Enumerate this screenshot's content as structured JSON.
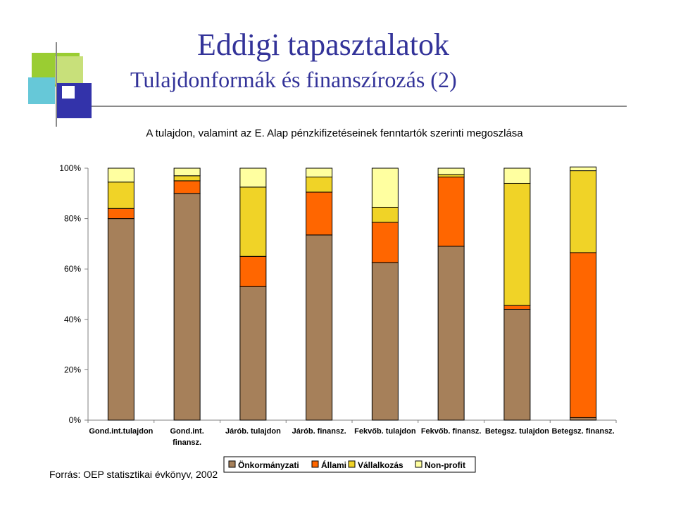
{
  "slide": {
    "title": "Eddigi tapasztalatok",
    "subtitle": "Tulajdonformák és finanszírozás (2)",
    "source": "Forrás: OEP statisztikai évkönyv, 2002"
  },
  "chart_data": {
    "type": "bar",
    "stacked": true,
    "percent_stacked": true,
    "title": "A tulajdon, valamint az E. Alap pénzkifizetéseinek fenntartók szerinti megoszlása",
    "categories": [
      [
        "Gond.int.tulajdon"
      ],
      [
        "Gond.int.",
        "finansz."
      ],
      [
        "Járób. tulajdon"
      ],
      [
        "Járób. finansz."
      ],
      [
        "Fekvőb. tulajdon"
      ],
      [
        "Fekvőb. finansz."
      ],
      [
        "Betegsz. tulajdon"
      ],
      [
        "Betegsz. finansz."
      ]
    ],
    "yticks": [
      "0%",
      "20%",
      "40%",
      "60%",
      "80%",
      "100%"
    ],
    "ylim": [
      0,
      100
    ],
    "grid": false,
    "legend_position": "bottom",
    "series": [
      {
        "name": "Önkormányzati",
        "color": "#A6805A",
        "values": [
          80,
          90,
          53,
          73.5,
          62.5,
          69,
          44,
          1
        ]
      },
      {
        "name": "Állami",
        "color": "#FF6600",
        "values": [
          4,
          5,
          12,
          17,
          16,
          27.5,
          1.5,
          65.5
        ]
      },
      {
        "name": "Vállalkozás",
        "color": "#F0D327",
        "values": [
          10.5,
          2,
          27.5,
          6,
          6,
          1,
          48.5,
          32.5
        ]
      },
      {
        "name": "Non-profit",
        "color": "#FFFFA0",
        "values": [
          5.5,
          3,
          7.5,
          3.5,
          15.5,
          2.5,
          6,
          1.5
        ]
      }
    ]
  }
}
